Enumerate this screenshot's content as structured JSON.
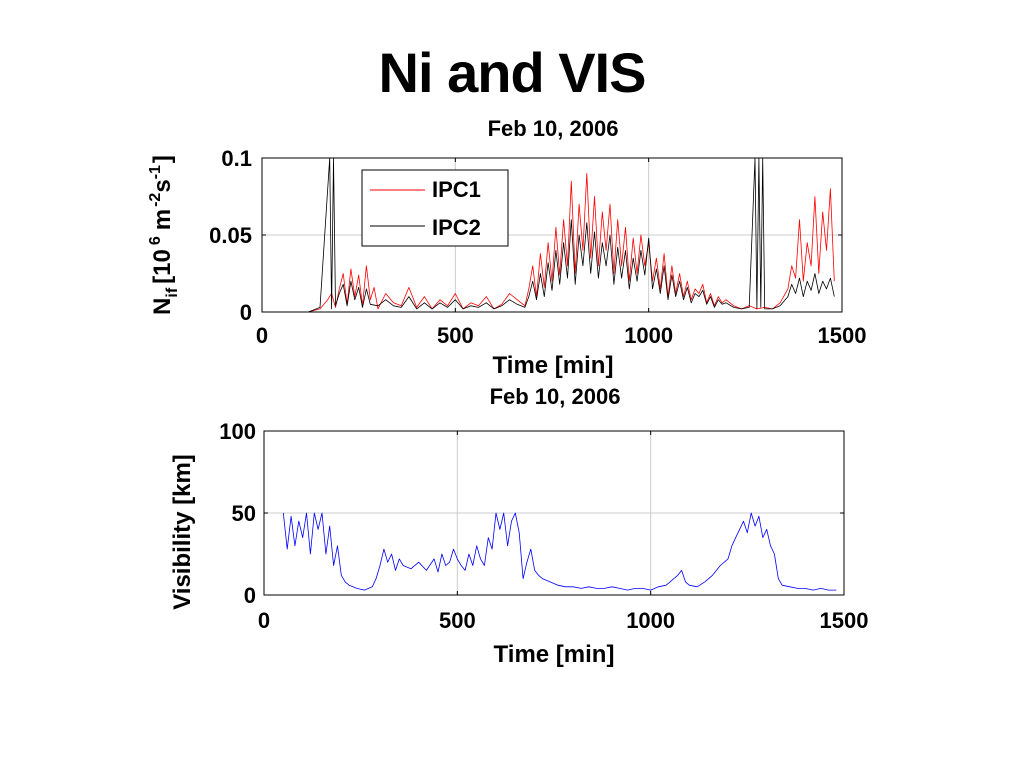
{
  "slide": {
    "title": "Ni and VIS"
  },
  "colors": {
    "ipc1": "#ff0000",
    "ipc2": "#000000",
    "visibility": "#0000ff",
    "grid": "#cccccc"
  },
  "chart_data": [
    {
      "type": "line",
      "title": "Feb 10, 2006",
      "xlabel": "Time [min]",
      "ylabel": "N_if [10^6 m^-2 s^-1]",
      "ylabel_parts": {
        "n": "N",
        "sub": "if",
        "open": "[10",
        "exp6": "6",
        "m": "m",
        "expm2": "-2",
        "s": "s",
        "expm1": "-1",
        "close": "]"
      },
      "xlim": [
        0,
        1500
      ],
      "ylim": [
        0,
        0.1
      ],
      "xticks": [
        0,
        500,
        1000,
        1500
      ],
      "xtick_labels": [
        "0",
        "500",
        "1000",
        "1500"
      ],
      "yticks": [
        0,
        0.05,
        0.1
      ],
      "ytick_labels": [
        "0",
        "0.05",
        "0.1"
      ],
      "grid": true,
      "legend_position": "top-left",
      "series": [
        {
          "name": "IPC1",
          "color": "#ff0000",
          "x": [
            0,
            30,
            60,
            90,
            120,
            150,
            170,
            180,
            190,
            200,
            210,
            220,
            230,
            240,
            250,
            260,
            270,
            280,
            290,
            300,
            320,
            340,
            360,
            380,
            400,
            420,
            440,
            460,
            480,
            500,
            520,
            540,
            560,
            580,
            600,
            620,
            640,
            660,
            680,
            690,
            700,
            710,
            720,
            730,
            740,
            750,
            760,
            770,
            780,
            790,
            800,
            810,
            820,
            830,
            840,
            850,
            860,
            870,
            880,
            890,
            900,
            910,
            920,
            930,
            940,
            950,
            960,
            970,
            980,
            990,
            1000,
            1010,
            1020,
            1030,
            1040,
            1050,
            1060,
            1070,
            1080,
            1090,
            1100,
            1110,
            1120,
            1130,
            1140,
            1150,
            1160,
            1170,
            1180,
            1190,
            1200,
            1220,
            1240,
            1260,
            1280,
            1300,
            1320,
            1340,
            1360,
            1370,
            1380,
            1390,
            1400,
            1410,
            1420,
            1430,
            1440,
            1450,
            1460,
            1470,
            1480
          ],
          "y": [
            0,
            0,
            0,
            0,
            0,
            0.002,
            0.008,
            0.012,
            0.003,
            0.015,
            0.025,
            0.005,
            0.028,
            0.01,
            0.024,
            0.004,
            0.03,
            0.008,
            0.016,
            0.002,
            0.012,
            0.006,
            0.004,
            0.016,
            0.003,
            0.01,
            0.002,
            0.008,
            0.004,
            0.012,
            0.002,
            0.006,
            0.004,
            0.01,
            0.002,
            0.005,
            0.012,
            0.008,
            0.004,
            0.015,
            0.03,
            0.01,
            0.038,
            0.016,
            0.045,
            0.02,
            0.055,
            0.024,
            0.06,
            0.03,
            0.085,
            0.025,
            0.07,
            0.04,
            0.09,
            0.035,
            0.075,
            0.03,
            0.065,
            0.04,
            0.07,
            0.025,
            0.06,
            0.03,
            0.055,
            0.02,
            0.048,
            0.025,
            0.05,
            0.03,
            0.045,
            0.02,
            0.035,
            0.015,
            0.038,
            0.01,
            0.03,
            0.012,
            0.025,
            0.01,
            0.02,
            0.008,
            0.015,
            0.012,
            0.018,
            0.006,
            0.012,
            0.004,
            0.01,
            0.006,
            0.008,
            0.004,
            0.002,
            0.004,
            0.002,
            0.003,
            0.002,
            0.006,
            0.015,
            0.03,
            0.022,
            0.06,
            0.02,
            0.045,
            0.03,
            0.075,
            0.025,
            0.065,
            0.04,
            0.08,
            0.02
          ]
        },
        {
          "name": "IPC2",
          "color": "#000000",
          "x": [
            0,
            30,
            60,
            90,
            120,
            150,
            175,
            180,
            185,
            190,
            200,
            210,
            220,
            230,
            240,
            250,
            260,
            270,
            280,
            300,
            320,
            340,
            360,
            380,
            400,
            420,
            440,
            460,
            480,
            500,
            520,
            540,
            560,
            580,
            600,
            620,
            640,
            660,
            680,
            690,
            700,
            710,
            720,
            730,
            740,
            750,
            760,
            770,
            780,
            790,
            800,
            810,
            820,
            830,
            840,
            850,
            860,
            870,
            880,
            890,
            900,
            910,
            920,
            930,
            940,
            950,
            960,
            970,
            980,
            990,
            1000,
            1010,
            1020,
            1030,
            1040,
            1050,
            1060,
            1070,
            1080,
            1090,
            1100,
            1110,
            1120,
            1130,
            1140,
            1150,
            1160,
            1170,
            1180,
            1190,
            1200,
            1220,
            1240,
            1260,
            1275,
            1280,
            1285,
            1290,
            1295,
            1300,
            1320,
            1340,
            1360,
            1370,
            1380,
            1390,
            1400,
            1410,
            1420,
            1430,
            1440,
            1450,
            1460,
            1470,
            1480
          ],
          "y": [
            0,
            0,
            0,
            0,
            0,
            0.003,
            0.1,
            0.002,
            0.1,
            0.004,
            0.012,
            0.018,
            0.004,
            0.02,
            0.008,
            0.016,
            0.003,
            0.015,
            0.005,
            0.004,
            0.008,
            0.004,
            0.003,
            0.01,
            0.002,
            0.006,
            0.002,
            0.006,
            0.003,
            0.008,
            0.002,
            0.004,
            0.003,
            0.006,
            0.002,
            0.004,
            0.008,
            0.005,
            0.003,
            0.01,
            0.02,
            0.008,
            0.025,
            0.01,
            0.032,
            0.014,
            0.04,
            0.018,
            0.045,
            0.022,
            0.06,
            0.018,
            0.05,
            0.03,
            0.058,
            0.025,
            0.052,
            0.022,
            0.045,
            0.03,
            0.05,
            0.018,
            0.042,
            0.022,
            0.04,
            0.015,
            0.035,
            0.02,
            0.04,
            0.024,
            0.048,
            0.015,
            0.028,
            0.012,
            0.03,
            0.008,
            0.024,
            0.01,
            0.02,
            0.008,
            0.016,
            0.006,
            0.012,
            0.01,
            0.014,
            0.005,
            0.01,
            0.003,
            0.008,
            0.005,
            0.006,
            0.003,
            0.002,
            0.003,
            0.1,
            0.002,
            0.1,
            0.003,
            0.1,
            0.002,
            0.002,
            0.004,
            0.01,
            0.018,
            0.012,
            0.022,
            0.01,
            0.02,
            0.014,
            0.025,
            0.012,
            0.02,
            0.015,
            0.022,
            0.01
          ]
        }
      ]
    },
    {
      "type": "line",
      "title": "Feb 10, 2006",
      "xlabel": "Time [min]",
      "ylabel": "Visibility [km]",
      "xlim": [
        0,
        1500
      ],
      "ylim": [
        0,
        100
      ],
      "xticks": [
        0,
        500,
        1000,
        1500
      ],
      "xtick_labels": [
        "0",
        "500",
        "1000",
        "1500"
      ],
      "yticks": [
        0,
        50,
        100
      ],
      "ytick_labels": [
        "0",
        "50",
        "100"
      ],
      "grid": true,
      "series": [
        {
          "name": "",
          "color": "#0000ff",
          "x": [
            50,
            60,
            70,
            80,
            90,
            100,
            110,
            120,
            130,
            140,
            150,
            160,
            170,
            180,
            190,
            200,
            210,
            220,
            230,
            240,
            260,
            280,
            290,
            300,
            310,
            320,
            330,
            340,
            350,
            360,
            380,
            400,
            420,
            440,
            450,
            460,
            470,
            480,
            490,
            500,
            510,
            520,
            530,
            540,
            550,
            560,
            570,
            580,
            590,
            600,
            610,
            620,
            630,
            640,
            650,
            660,
            670,
            680,
            690,
            700,
            710,
            720,
            740,
            760,
            780,
            800,
            820,
            840,
            860,
            880,
            900,
            920,
            940,
            960,
            980,
            1000,
            1020,
            1040,
            1050,
            1060,
            1070,
            1080,
            1090,
            1100,
            1120,
            1140,
            1160,
            1180,
            1200,
            1210,
            1220,
            1230,
            1240,
            1250,
            1260,
            1270,
            1280,
            1290,
            1300,
            1310,
            1320,
            1330,
            1340,
            1360,
            1380,
            1400,
            1420,
            1440,
            1460,
            1480
          ],
          "y": [
            50,
            28,
            48,
            30,
            45,
            35,
            50,
            25,
            50,
            40,
            50,
            25,
            42,
            18,
            30,
            12,
            8,
            6,
            5,
            4,
            3,
            5,
            10,
            18,
            28,
            20,
            25,
            15,
            22,
            18,
            16,
            20,
            15,
            22,
            14,
            25,
            18,
            20,
            28,
            22,
            18,
            15,
            25,
            18,
            30,
            22,
            18,
            35,
            28,
            50,
            40,
            50,
            30,
            45,
            50,
            38,
            10,
            20,
            28,
            15,
            12,
            10,
            8,
            6,
            5,
            5,
            4,
            5,
            4,
            4,
            5,
            4,
            3,
            4,
            4,
            3,
            5,
            6,
            8,
            10,
            12,
            15,
            8,
            6,
            5,
            8,
            12,
            18,
            22,
            30,
            35,
            40,
            45,
            38,
            50,
            42,
            48,
            35,
            40,
            30,
            25,
            10,
            6,
            5,
            4,
            4,
            3,
            4,
            3,
            3
          ]
        }
      ]
    }
  ]
}
